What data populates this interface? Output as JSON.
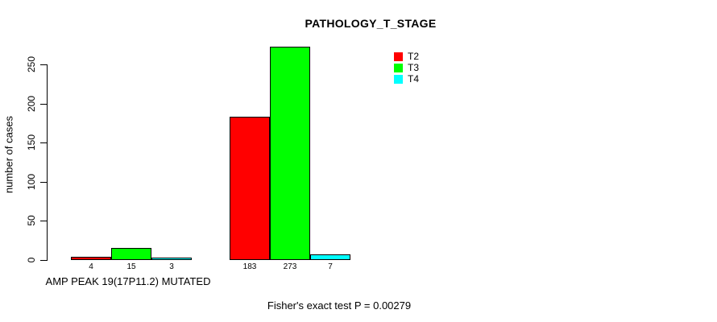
{
  "chart_data": {
    "type": "bar",
    "title": "PATHOLOGY_T_STAGE",
    "ylabel": "number of cases",
    "xlabel": "",
    "categories": [
      "AMP PEAK 19(17P11.2) MUTATED",
      ""
    ],
    "series": [
      {
        "name": "T2",
        "color": "#FF0000",
        "values": [
          4,
          183
        ]
      },
      {
        "name": "T3",
        "color": "#00FF00",
        "values": [
          15,
          273
        ]
      },
      {
        "name": "T4",
        "color": "#00FFFF",
        "values": [
          3,
          7
        ]
      }
    ],
    "yticks": [
      0,
      50,
      100,
      150,
      200,
      250
    ],
    "ylim": [
      0,
      273
    ],
    "bar_value_labels": [
      [
        4,
        15,
        3
      ],
      [
        183,
        273,
        7
      ]
    ],
    "legend": {
      "position": "top-right",
      "entries": [
        "T2",
        "T3",
        "T4"
      ],
      "colors": [
        "#FF0000",
        "#00FF00",
        "#00FFFF"
      ]
    },
    "grid": false,
    "caption": "Fisher's exact test P = 0.00279"
  },
  "colors": {
    "axis": "#000000",
    "background": "#FFFFFF",
    "bar_border": "#000000",
    "t2_red": "#FF0000",
    "t3_green": "#00FF00",
    "t4_cyan": "#00FFFF"
  }
}
